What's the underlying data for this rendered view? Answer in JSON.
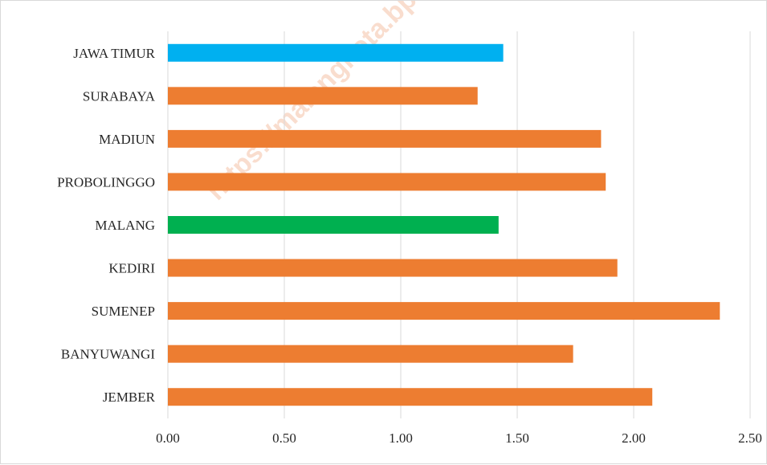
{
  "chart_data": {
    "type": "bar",
    "orientation": "horizontal",
    "title": "",
    "xlabel": "",
    "ylabel": "",
    "categories": [
      "JAWA TIMUR",
      "SURABAYA",
      "MADIUN",
      "PROBOLINGGO",
      "MALANG",
      "KEDIRI",
      "SUMENEP",
      "BANYUWANGI",
      "JEMBER"
    ],
    "values": [
      1.44,
      1.33,
      1.86,
      1.88,
      1.42,
      1.93,
      2.37,
      1.74,
      2.08
    ],
    "bar_colors": [
      "#00b0f0",
      "#ed7d31",
      "#ed7d31",
      "#ed7d31",
      "#00b050",
      "#ed7d31",
      "#ed7d31",
      "#ed7d31",
      "#ed7d31"
    ],
    "xlim": [
      0,
      2.5
    ],
    "x_ticks": [
      "0.00",
      "0.50",
      "1.00",
      "1.50",
      "2.00",
      "2.50"
    ],
    "grid": true,
    "legend": "none"
  },
  "watermark": "https://malangkota.bps.go.id"
}
